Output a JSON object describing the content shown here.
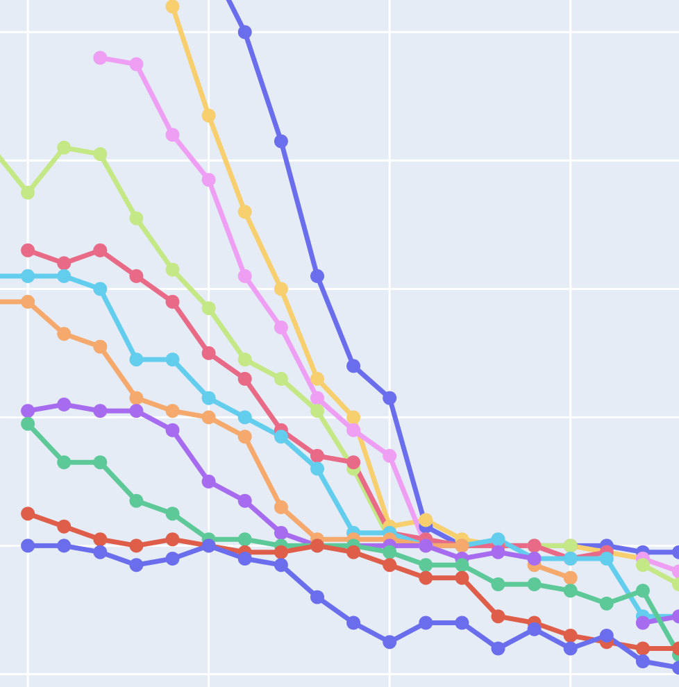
{
  "chart_data": {
    "type": "line",
    "title": "",
    "xlabel": "",
    "ylabel": "",
    "grid": true,
    "legend": "none",
    "x": [
      -1,
      0,
      1,
      2,
      3,
      4,
      5,
      6,
      7,
      8,
      9,
      10,
      11,
      12,
      13,
      14,
      15,
      16,
      17,
      18,
      19
    ],
    "xlim": [
      -0.77,
      18.0
    ],
    "ylim": [
      -1.0,
      52.5
    ],
    "series": [
      {
        "color": "#6A6EEC",
        "values": [
          null,
          null,
          null,
          null,
          null,
          null,
          55.6,
          50.0,
          41.5,
          31.0,
          24.0,
          21.5,
          11.5,
          10.0,
          10.0,
          10.0,
          10.0,
          10.0,
          9.5,
          9.5,
          null
        ]
      },
      {
        "color": "#F8CF6E",
        "values": [
          null,
          null,
          null,
          null,
          null,
          52.0,
          43.5,
          36.0,
          30.0,
          23.0,
          20.0,
          11.5,
          12.0,
          10.5,
          10.0,
          10.0,
          10.0,
          9.5,
          9.0,
          8.0,
          7.0
        ]
      },
      {
        "color": "#EE9FF4",
        "values": [
          null,
          null,
          null,
          48.0,
          47.5,
          42.0,
          38.5,
          31.0,
          27.0,
          21.5,
          19.0,
          17.0,
          10.0,
          10.0,
          10.0,
          10.0,
          10.0,
          null,
          9.0,
          8.0,
          6.5
        ]
      },
      {
        "color": "#C5E887",
        "values": [
          41.0,
          37.5,
          41.0,
          40.5,
          35.5,
          31.5,
          28.5,
          24.5,
          23.0,
          20.5,
          16.0,
          10.5,
          10.5,
          10.0,
          10.0,
          10.0,
          10.0,
          null,
          8.5,
          7.0,
          5.5
        ]
      },
      {
        "color": "#E86A87",
        "values": [
          null,
          33.0,
          32.0,
          33.0,
          31.0,
          29.0,
          25.0,
          23.0,
          19.0,
          17.0,
          16.5,
          11.0,
          10.5,
          10.0,
          10.0,
          10.0,
          9.0,
          9.5,
          null,
          null,
          null
        ]
      },
      {
        "color": "#63CDED",
        "values": [
          31.0,
          31.0,
          31.0,
          30.0,
          24.5,
          24.5,
          21.5,
          20.0,
          18.5,
          16.0,
          11.0,
          11.0,
          10.0,
          10.0,
          10.5,
          9.0,
          9.0,
          9.0,
          4.5,
          4.5,
          null
        ]
      },
      {
        "color": "#F6A96C",
        "values": [
          29.0,
          29.0,
          26.5,
          25.5,
          21.5,
          20.5,
          20.0,
          18.5,
          13.0,
          10.5,
          10.5,
          10.5,
          10.0,
          10.0,
          null,
          8.5,
          7.5,
          null,
          null,
          null,
          null
        ]
      },
      {
        "color": "#A66BEE",
        "values": [
          null,
          20.5,
          21.0,
          20.5,
          20.5,
          19.0,
          15.0,
          13.5,
          11.0,
          10.0,
          10.0,
          10.0,
          10.0,
          9.0,
          9.5,
          9.0,
          null,
          null,
          4.0,
          4.5,
          null
        ]
      },
      {
        "color": "#5DC998",
        "values": [
          null,
          19.5,
          16.5,
          16.5,
          13.5,
          12.5,
          10.5,
          10.5,
          10.0,
          10.0,
          10.0,
          9.5,
          8.5,
          8.5,
          7.0,
          7.0,
          6.5,
          5.5,
          6.5,
          1.5,
          null
        ]
      },
      {
        "color": "#DE5E4A",
        "values": [
          null,
          12.5,
          11.5,
          10.5,
          10.0,
          10.5,
          10.0,
          9.5,
          9.5,
          10.0,
          9.5,
          8.5,
          7.5,
          7.5,
          4.5,
          4.0,
          3.0,
          2.5,
          2.0,
          2.0,
          null
        ]
      },
      {
        "color": "#6A6EEC",
        "values": [
          null,
          10.0,
          10.0,
          9.5,
          8.5,
          9.0,
          10.0,
          9.0,
          8.5,
          6.0,
          4.0,
          2.5,
          4.0,
          4.0,
          2.0,
          3.5,
          2.0,
          3.0,
          1.0,
          0.5,
          null
        ]
      }
    ]
  }
}
